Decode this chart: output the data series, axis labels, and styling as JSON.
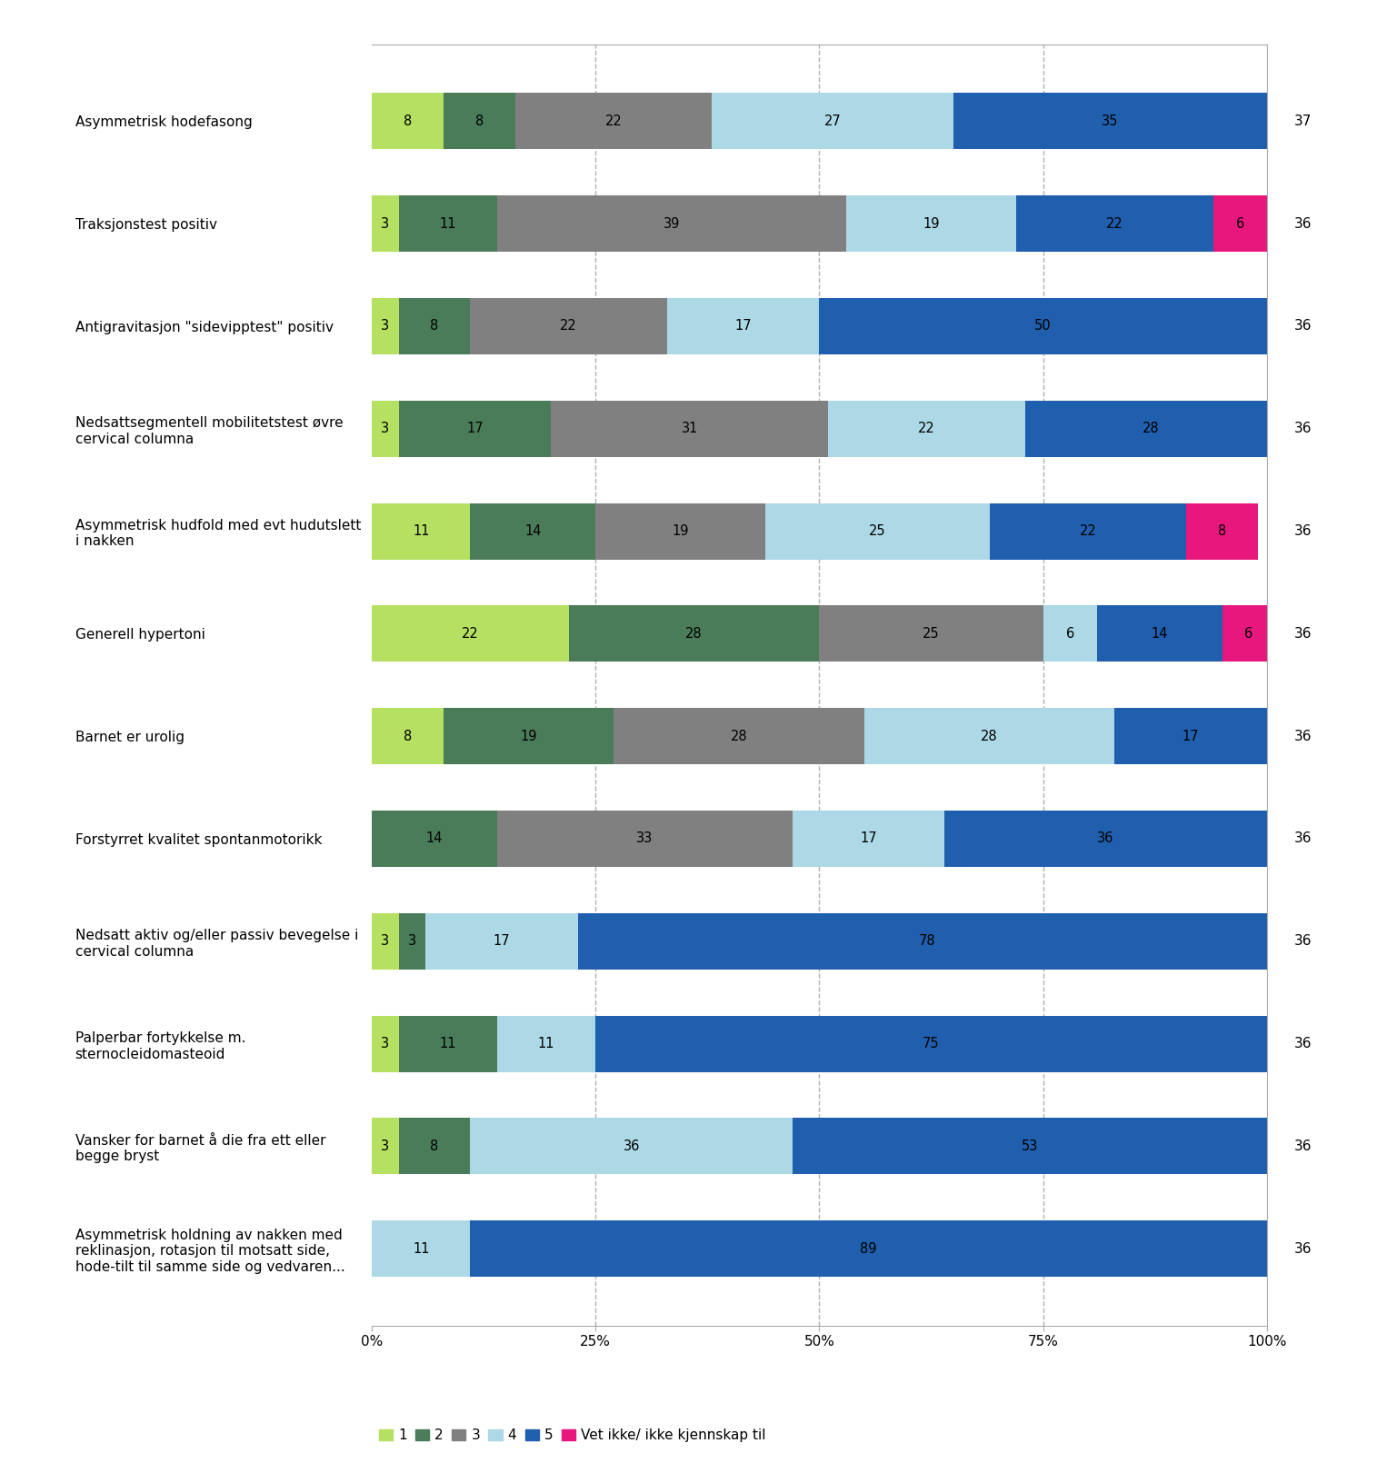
{
  "categories": [
    "Asymmetrisk hodefasong",
    "Traksjonstest positiv",
    "Antigravitasjon \"sidevipptest\" positiv",
    "Nedsattsegmentell mobilitetstest øvre\ncervical columna",
    "Asymmetrisk hudfold med evt hudutslett\ni nakken",
    "Generell hypertoni",
    "Barnet er urolig",
    "Forstyrret kvalitet spontanmotorikk",
    "Nedsatt aktiv og/eller passiv bevegelse i\ncervical columna",
    "Palperbar fortykkelse m.\nsternocleidomasteoid",
    "Vansker for barnet å die fra ett eller\nbegge bryst",
    "Asymmetrisk holdning av nakken med\nreklinasjon, rotasjon til motsatt side,\nhode-tilt til samme side og vedvaren..."
  ],
  "n_values": [
    37,
    36,
    36,
    36,
    36,
    36,
    36,
    36,
    36,
    36,
    36,
    36
  ],
  "data": [
    [
      8,
      8,
      22,
      27,
      35,
      0
    ],
    [
      3,
      11,
      39,
      19,
      22,
      6
    ],
    [
      3,
      8,
      22,
      17,
      50,
      0
    ],
    [
      3,
      17,
      31,
      22,
      28,
      0
    ],
    [
      11,
      14,
      19,
      25,
      22,
      8
    ],
    [
      22,
      28,
      25,
      6,
      14,
      6
    ],
    [
      8,
      19,
      28,
      28,
      17,
      0
    ],
    [
      0,
      14,
      33,
      17,
      36,
      0
    ],
    [
      3,
      3,
      0,
      17,
      78,
      0
    ],
    [
      3,
      11,
      0,
      11,
      75,
      0
    ],
    [
      3,
      8,
      0,
      36,
      53,
      0
    ],
    [
      0,
      0,
      0,
      11,
      89,
      0
    ]
  ],
  "colors": [
    "#b5e061",
    "#4a7c59",
    "#808080",
    "#add8e6",
    "#1f5fad",
    "#e8177d"
  ],
  "legend_labels": [
    "1",
    "2",
    "3",
    "4",
    "5",
    "Vet ikke/ ikke kjennskap til"
  ],
  "bar_height": 0.55,
  "background_color": "#ffffff",
  "grid_color": "#b0b0b0",
  "text_color": "#000000",
  "fontsize": 10.5,
  "label_fontsize": 11,
  "n_fontsize": 11
}
